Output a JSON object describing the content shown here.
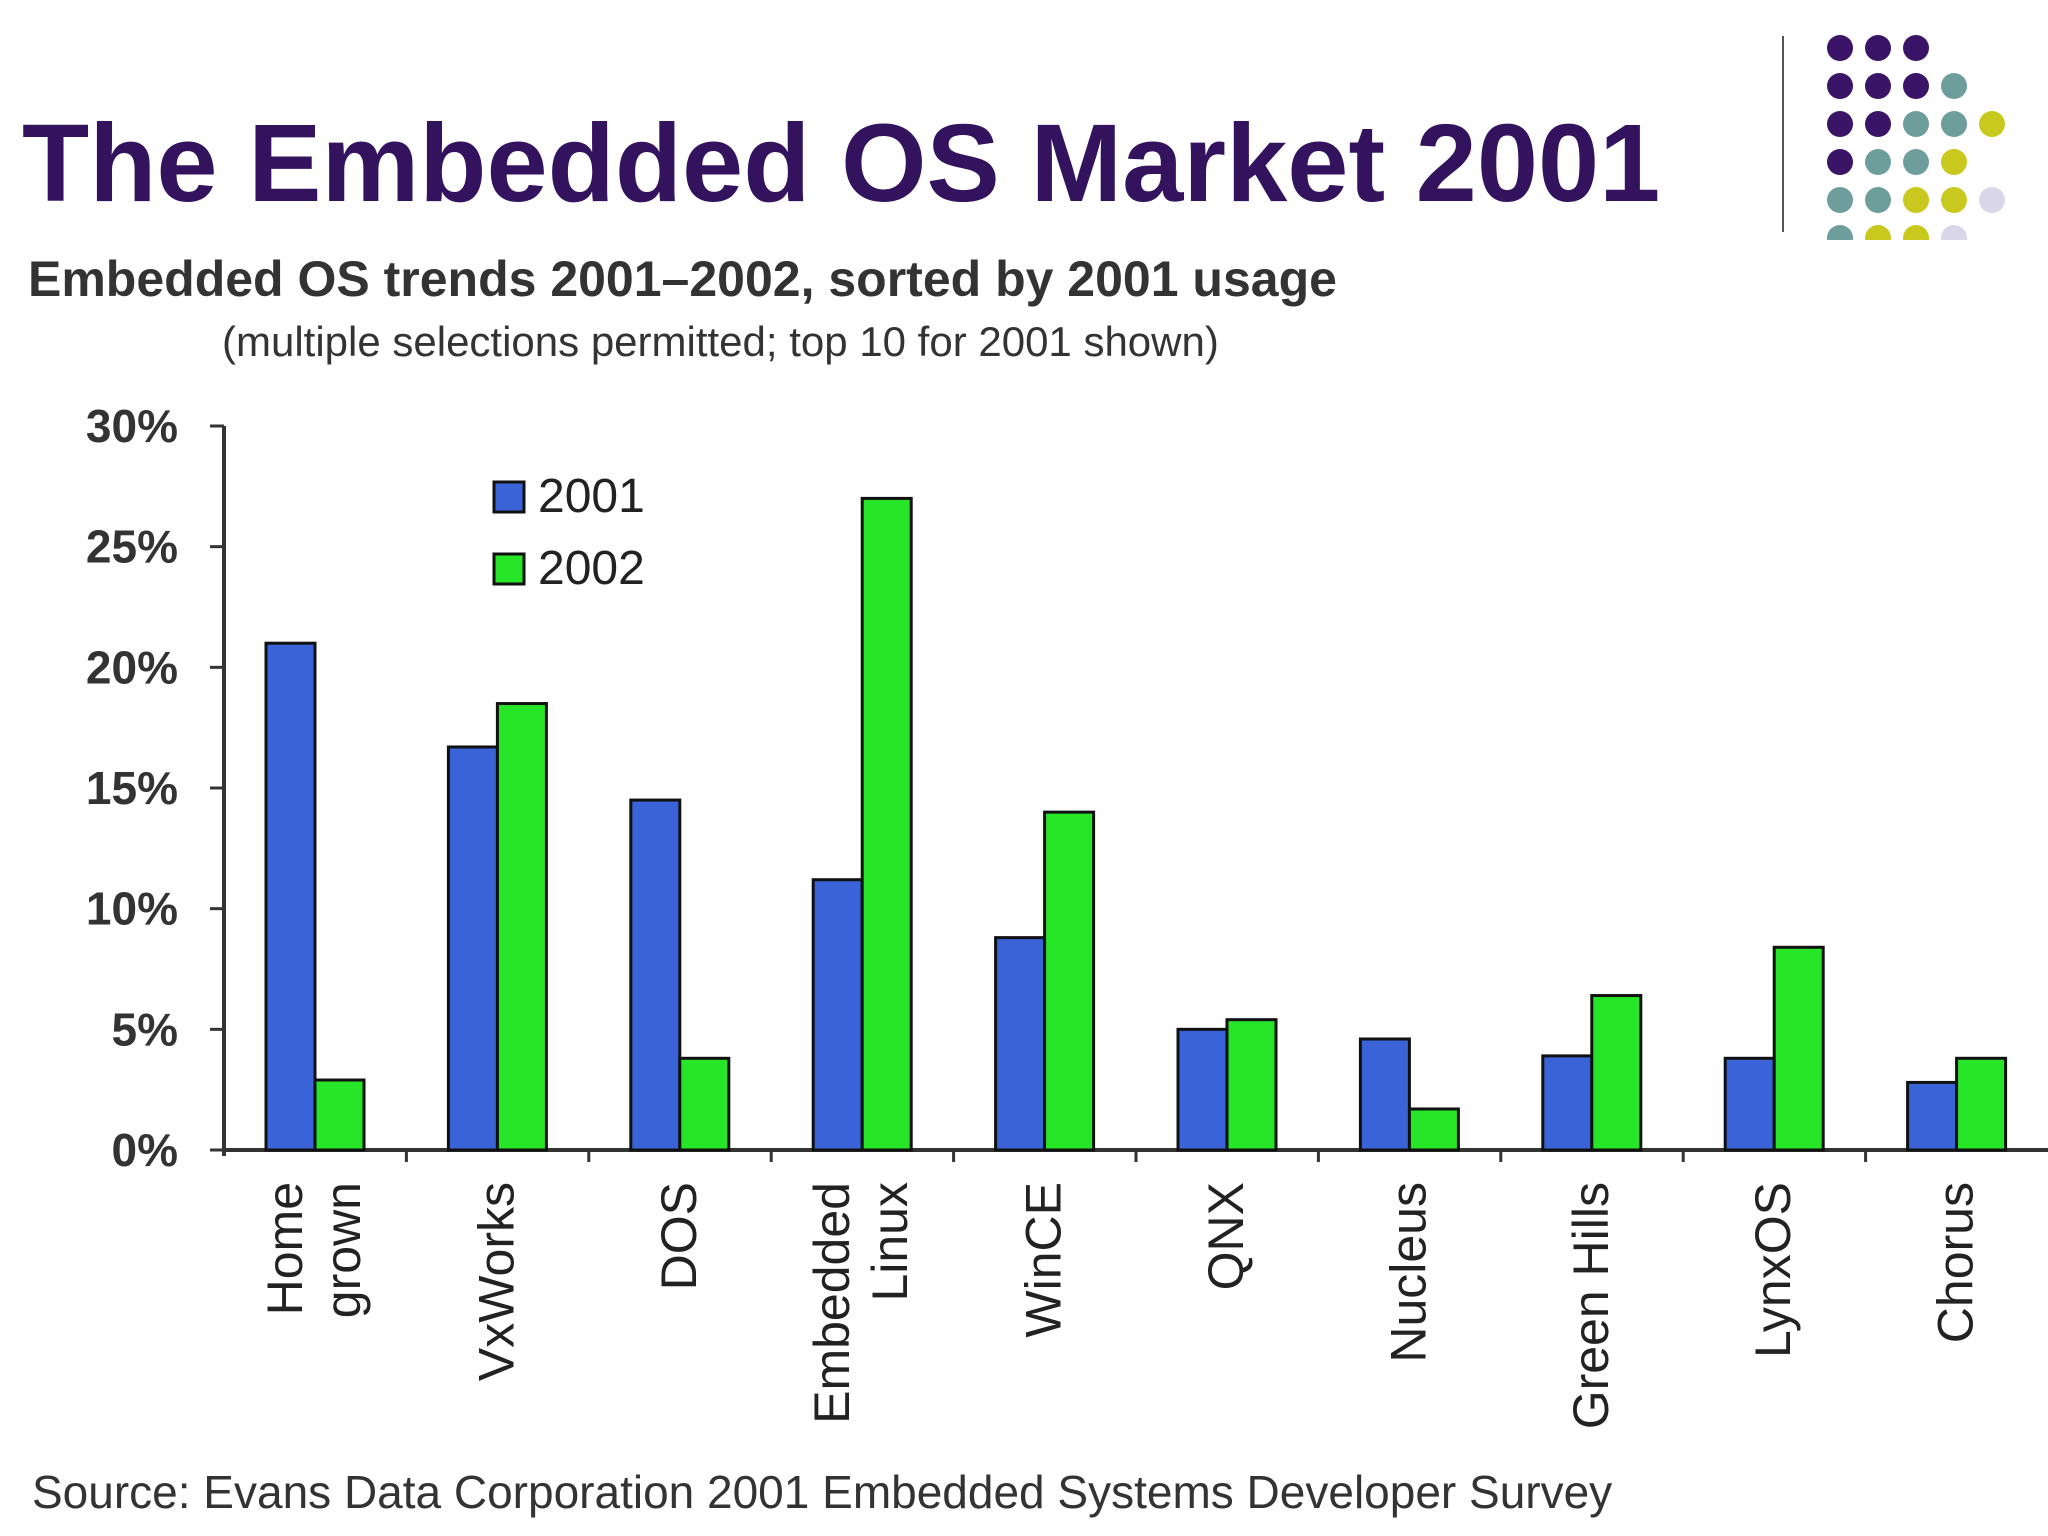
{
  "slide": {
    "title": "The Embedded OS Market 2001",
    "colors": {
      "title": "#33135e",
      "dot_purple": "#3a1467",
      "dot_teal": "#6e9e9c",
      "dot_yellow": "#c8c81e",
      "dot_lavender": "#d9d6ea"
    }
  },
  "chart_data": {
    "type": "bar",
    "title": "Embedded OS trends 2001–2002, sorted by 2001 usage",
    "subtitle": "(multiple selections permitted; top 10 for 2001 shown)",
    "categories": [
      [
        "Home",
        "grown"
      ],
      [
        "VxWorks"
      ],
      [
        "DOS"
      ],
      [
        "Embedded",
        "Linux"
      ],
      [
        "WinCE"
      ],
      [
        "QNX"
      ],
      [
        "Nucleus"
      ],
      [
        "Green Hills"
      ],
      [
        "LynxOS"
      ],
      [
        "Chorus"
      ]
    ],
    "series": [
      {
        "name": "2001",
        "color": "#3a63d8",
        "values": [
          21,
          16.7,
          14.5,
          11.2,
          8.8,
          5.0,
          4.6,
          3.9,
          3.8,
          2.8
        ]
      },
      {
        "name": "2002",
        "color": "#27e627",
        "values": [
          2.9,
          18.5,
          3.8,
          27.0,
          14.0,
          5.4,
          1.7,
          6.4,
          8.4,
          3.8
        ]
      }
    ],
    "yticks": [
      "0%",
      "5%",
      "10%",
      "15%",
      "20%",
      "25%",
      "30%"
    ],
    "ylim": [
      0,
      30
    ],
    "xlabel": "",
    "ylabel": "",
    "legend_position": "top-center",
    "grid": false,
    "source": "Source:  Evans Data Corporation 2001 Embedded Systems Developer Survey"
  }
}
